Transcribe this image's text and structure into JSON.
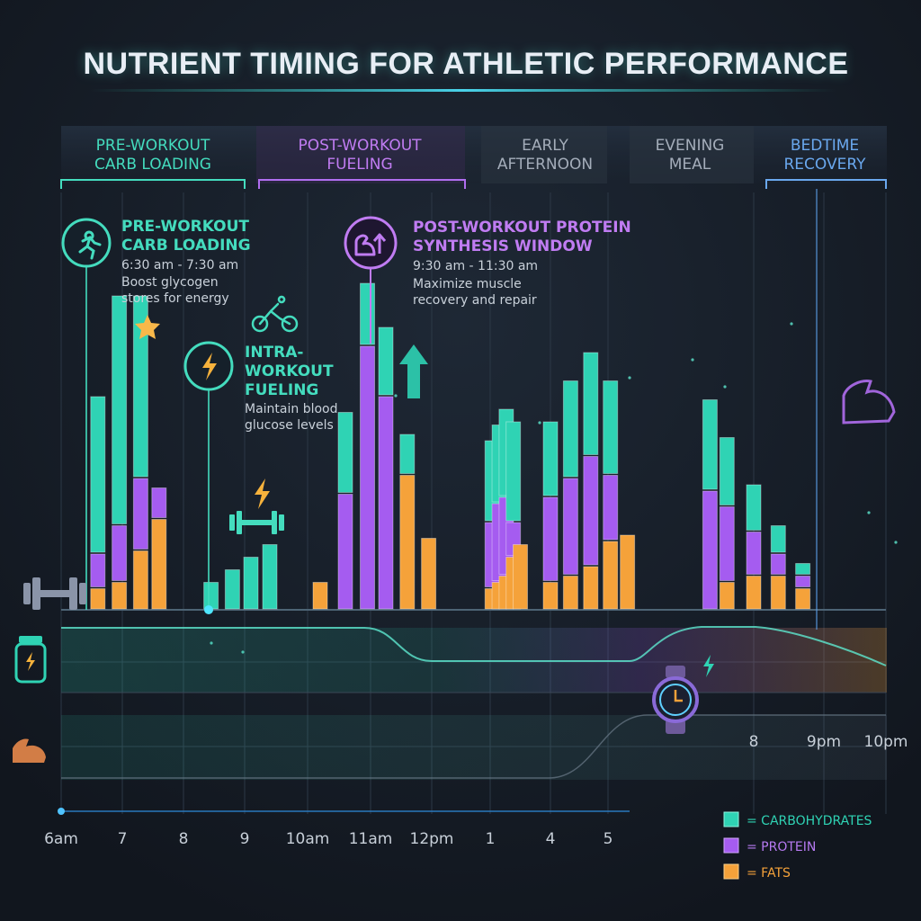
{
  "title": "NUTRIENT TIMING FOR ATHLETIC PERFORMANCE",
  "colors": {
    "background": "#151c26",
    "carbohydrates": "#2fd3b4",
    "protein": "#a55cf0",
    "fats": "#f5a23a",
    "accent_blue": "#5b9ee8",
    "text_muted": "#b8c0cc"
  },
  "phases": [
    {
      "line1": "PRE-WORKOUT",
      "line2": "CARB LOADING",
      "color": "#44dcbe"
    },
    {
      "line1": "POST-WORKOUT",
      "line2": "FUELING",
      "color": "#c07cf2"
    },
    {
      "line1": "EARLY",
      "line2": "AFTERNOON",
      "color": "#9aa4b2"
    },
    {
      "line1": "EVENING",
      "line2": "MEAL",
      "color": "#9aa4b2"
    },
    {
      "line1": "BEDTIME",
      "line2": "RECOVERY",
      "color": "#6aa8ee"
    }
  ],
  "annotations": {
    "preworkout": {
      "title1": "PRE-WORKOUT",
      "title2": "CARB LOADING",
      "time": "6:30 am - 7:30 am",
      "desc1": "Boost glycogen",
      "desc2": "stores for energy",
      "icon": "runner-icon"
    },
    "intra": {
      "title1": "INTRA-",
      "title2": "WORKOUT",
      "title3": "FUELING",
      "desc1": "Maintain blood",
      "desc2": "glucose levels",
      "icon": "lightning-icon"
    },
    "postworkout": {
      "title1": "POST-WORKOUT PROTEIN",
      "title2": "SYNTHESIS WINDOW",
      "time": "9:30 am - 11:30 am",
      "desc1": "Maximize muscle",
      "desc2": "recovery and repair",
      "icon": "flexed-arm-up-arrow-icon"
    }
  },
  "legend": {
    "carbohydrates": "= CARBOHYDRATES",
    "protein": "= PROTEIN",
    "fats": "= FATS"
  },
  "secondary_axis_labels": [
    "8",
    "9pm",
    "10pm"
  ],
  "chart_data": {
    "type": "bar",
    "title": "NUTRIENT TIMING FOR ATHLETIC PERFORMANCE",
    "x_tick_labels": [
      "6am",
      "7",
      "8",
      "9",
      "10am",
      "11am",
      "12pm",
      "1",
      "4",
      "5"
    ],
    "series_names": [
      "CARBOHYDRATES",
      "PROTEIN",
      "FATS"
    ],
    "groups": [
      {
        "x_hours": [
          6.6,
          6.95,
          7.3,
          7.6
        ],
        "bars": [
          {
            "carbohydrates": 50,
            "protein": 11,
            "fats": 7
          },
          {
            "carbohydrates": 73,
            "protein": 18,
            "fats": 9
          },
          {
            "carbohydrates": 58,
            "protein": 23,
            "fats": 19
          },
          {
            "carbohydrates": 0,
            "protein": 10,
            "fats": 29
          }
        ]
      },
      {
        "x_hours": [
          8.45,
          8.8,
          9.1,
          9.4
        ],
        "bars": [
          {
            "carbohydrates": 9,
            "protein": 0,
            "fats": 0
          },
          {
            "carbohydrates": 13,
            "protein": 0,
            "fats": 0
          },
          {
            "carbohydrates": 17,
            "protein": 0,
            "fats": 0
          },
          {
            "carbohydrates": 21,
            "protein": 0,
            "fats": 0
          }
        ]
      },
      {
        "x_hours": [
          10.2,
          10.6,
          10.95,
          11.25,
          11.6,
          11.95
        ],
        "bars": [
          {
            "carbohydrates": 0,
            "protein": 0,
            "fats": 9
          },
          {
            "carbohydrates": 26,
            "protein": 37,
            "fats": 0
          },
          {
            "carbohydrates": 20,
            "protein": 84,
            "fats": 0
          },
          {
            "carbohydrates": 22,
            "protein": 68,
            "fats": 0
          },
          {
            "carbohydrates": 13,
            "protein": 0,
            "fats": 43
          },
          {
            "carbohydrates": 0,
            "protein": 0,
            "fats": 23
          }
        ]
      },
      {
        "x_hours": [
          13.1,
          13.45,
          13.8,
          14.15,
          14.5
        ],
        "bars": [
          {
            "carbohydrates": 26,
            "protein": 21,
            "fats": 7
          },
          {
            "carbohydrates": 25,
            "protein": 25,
            "fats": 9
          },
          {
            "carbohydrates": 28,
            "protein": 25,
            "fats": 11
          },
          {
            "carbohydrates": 32,
            "protein": 11,
            "fats": 17
          },
          {
            "carbohydrates": 0,
            "protein": 0,
            "fats": 21
          }
        ]
      },
      {
        "x_hours": [
          16.0,
          16.35,
          16.7,
          17.05,
          17.4
        ],
        "bars": [
          {
            "carbohydrates": 24,
            "protein": 27,
            "fats": 9
          },
          {
            "carbohydrates": 31,
            "protein": 31,
            "fats": 11
          },
          {
            "carbohydrates": 33,
            "protein": 35,
            "fats": 14
          },
          {
            "carbohydrates": 30,
            "protein": 21,
            "fats": 22
          },
          {
            "carbohydrates": 0,
            "protein": 0,
            "fats": 24
          }
        ]
      },
      {
        "x_hours": [
          19.1,
          19.45,
          20.0,
          20.35,
          20.7,
          21.05
        ],
        "bars": [
          {
            "carbohydrates": 29,
            "protein": 38,
            "fats": 0
          },
          {
            "carbohydrates": 22,
            "protein": 24,
            "fats": 9
          },
          {
            "carbohydrates": 15,
            "protein": 14,
            "fats": 11
          },
          {
            "carbohydrates": 9,
            "protein": 7,
            "fats": 11
          },
          {
            "carbohydrates": 4,
            "protein": 4,
            "fats": 7
          },
          {
            "carbohydrates": 0,
            "protein": 0,
            "fats": 0
          }
        ]
      }
    ],
    "grid": true,
    "legend_position": "bottom-right"
  }
}
